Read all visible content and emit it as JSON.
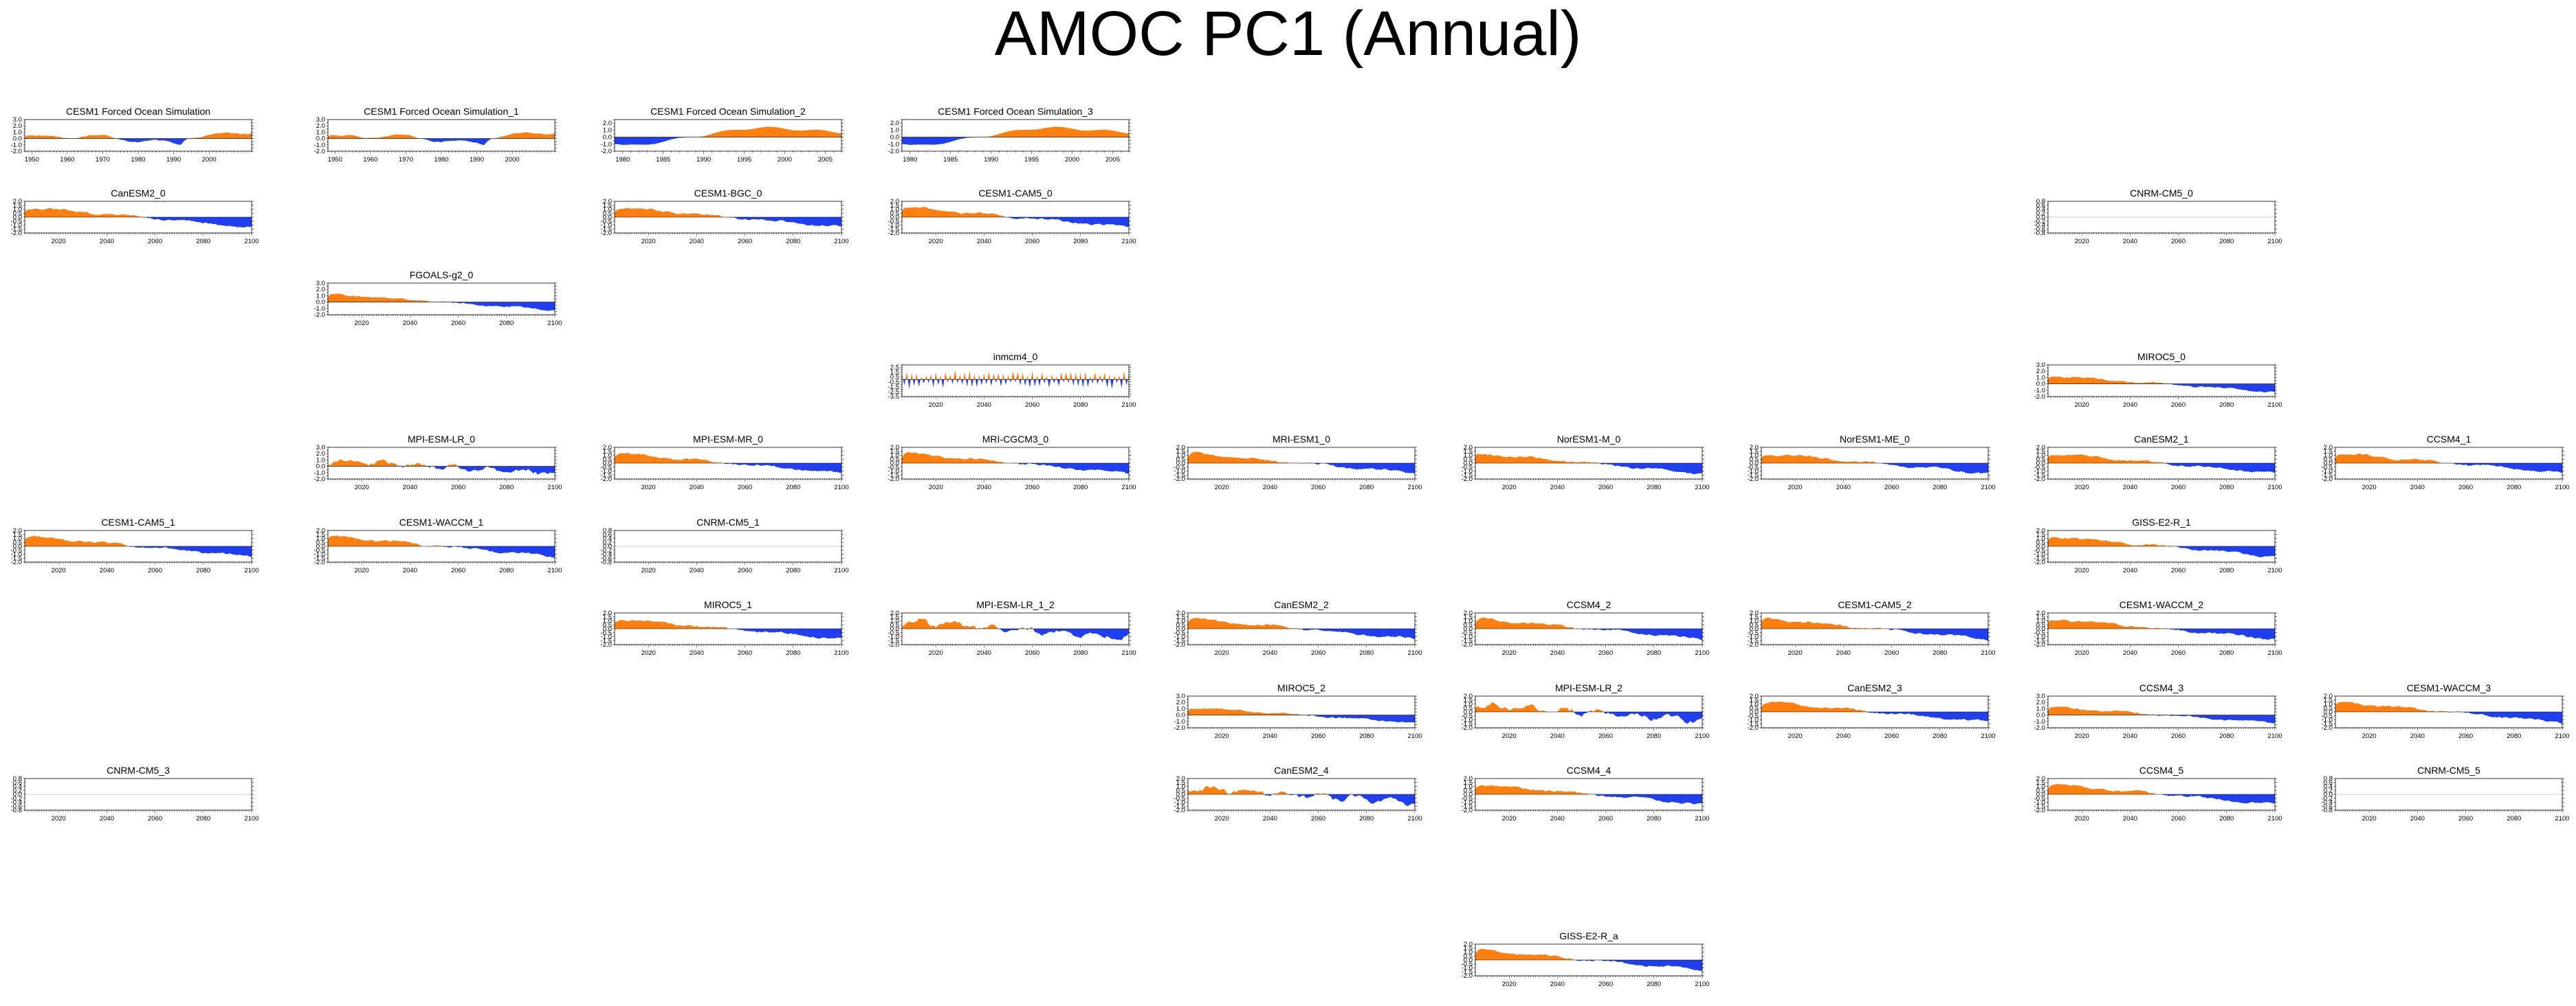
{
  "title": "AMOC PC1 (Annual)",
  "colors": {
    "positive": "#ff7f0e",
    "negative": "#1f3ff0"
  },
  "chart_data": [
    {
      "title": "CESM1 Forced Ocean Simulation",
      "row": 0,
      "col": 0,
      "type": "area",
      "profile": "ocean",
      "xlim": [
        1948,
        2012
      ],
      "xticks": [
        1950,
        1960,
        1970,
        1980,
        1990,
        2000
      ],
      "ylim": [
        -2,
        3
      ],
      "yticks": [
        -2,
        -1.5,
        -1,
        -0.5,
        0,
        0.5,
        1,
        1.5,
        2,
        2.5,
        3
      ]
    },
    {
      "title": "CESM1 Forced Ocean Simulation_1",
      "row": 0,
      "col": 1,
      "type": "area",
      "profile": "ocean",
      "xlim": [
        1948,
        2012
      ],
      "xticks": [
        1950,
        1960,
        1970,
        1980,
        1990,
        2000
      ],
      "ylim": [
        -2,
        3
      ],
      "yticks": [
        -2,
        -1.5,
        -1,
        -0.5,
        0,
        0.5,
        1,
        1.5,
        2,
        2.5,
        3
      ]
    },
    {
      "title": "CESM1 Forced Ocean Simulation_2",
      "row": 0,
      "col": 2,
      "type": "area",
      "profile": "ocean2",
      "xlim": [
        1979,
        2007
      ],
      "xticks": [
        1980,
        1985,
        1990,
        1995,
        2000,
        2005
      ],
      "ylim": [
        -2,
        2.5
      ],
      "yticks": [
        -2,
        -1.5,
        -1,
        -0.5,
        0,
        0.5,
        1,
        1.5,
        2,
        2.5
      ]
    },
    {
      "title": "CESM1 Forced Ocean Simulation_3",
      "row": 0,
      "col": 3,
      "type": "area",
      "profile": "ocean2",
      "xlim": [
        1979,
        2007
      ],
      "xticks": [
        1980,
        1985,
        1990,
        1995,
        2000,
        2005
      ],
      "ylim": [
        -2,
        2.5
      ],
      "yticks": [
        -2,
        -1.5,
        -1,
        -0.5,
        0,
        0.5,
        1,
        1.5,
        2,
        2.5
      ]
    },
    {
      "title": "CanESM2_0",
      "row": 1,
      "col": 0,
      "type": "area",
      "profile": "down",
      "xlim": [
        2006,
        2100
      ],
      "xticks": [
        2020,
        2040,
        2060,
        2080,
        2100
      ],
      "ylim": [
        -2,
        2
      ],
      "yticks": [
        -2,
        -1.5,
        -1,
        -0.5,
        0,
        0.5,
        1,
        1.5,
        2
      ]
    },
    {
      "title": "CESM1-BGC_0",
      "row": 1,
      "col": 2,
      "type": "area",
      "profile": "down",
      "xlim": [
        2006,
        2100
      ],
      "xticks": [
        2020,
        2040,
        2060,
        2080,
        2100
      ],
      "ylim": [
        -2,
        2
      ],
      "yticks": [
        -2,
        -1.5,
        -1,
        -0.5,
        0,
        0.5,
        1,
        1.5,
        2
      ]
    },
    {
      "title": "CESM1-CAM5_0",
      "row": 1,
      "col": 3,
      "type": "area",
      "profile": "down",
      "xlim": [
        2006,
        2100
      ],
      "xticks": [
        2020,
        2040,
        2060,
        2080,
        2100
      ],
      "ylim": [
        -2,
        2
      ],
      "yticks": [
        -2,
        -1.5,
        -1,
        -0.5,
        0,
        0.5,
        1,
        1.5,
        2
      ]
    },
    {
      "title": "CNRM-CM5_0",
      "row": 1,
      "col": 7,
      "type": "area",
      "profile": "flat",
      "xlim": [
        2006,
        2100
      ],
      "xticks": [
        2020,
        2040,
        2060,
        2080,
        2100
      ],
      "ylim": [
        -0.8,
        0.8
      ],
      "yticks": [
        -0.8,
        -0.6,
        -0.4,
        -0.2,
        0,
        0.2,
        0.4,
        0.6,
        0.8
      ]
    },
    {
      "title": "FGOALS-g2_0",
      "row": 2,
      "col": 1,
      "type": "area",
      "profile": "down",
      "xlim": [
        2006,
        2100
      ],
      "xticks": [
        2020,
        2040,
        2060,
        2080,
        2100
      ],
      "ylim": [
        -2,
        3
      ],
      "yticks": [
        -2,
        -1.5,
        -1,
        -0.5,
        0,
        0.5,
        1,
        1.5,
        2,
        2.5,
        3
      ]
    },
    {
      "title": "inmcm4_0",
      "row": 3,
      "col": 3,
      "type": "area",
      "profile": "osc",
      "xlim": [
        2006,
        2100
      ],
      "xticks": [
        2020,
        2040,
        2060,
        2080,
        2100
      ],
      "ylim": [
        -3.5,
        3
      ],
      "yticks": [
        -3.5,
        -3,
        -2.5,
        -2,
        -1.5,
        -1,
        -0.5,
        0,
        0.5,
        1,
        1.5,
        2,
        2.5,
        3
      ]
    },
    {
      "title": "MIROC5_0",
      "row": 3,
      "col": 7,
      "type": "area",
      "profile": "down",
      "xlim": [
        2006,
        2100
      ],
      "xticks": [
        2020,
        2040,
        2060,
        2080,
        2100
      ],
      "ylim": [
        -2,
        3
      ],
      "yticks": [
        -2,
        -1.5,
        -1,
        -0.5,
        0,
        0.5,
        1,
        1.5,
        2,
        2.5,
        3
      ]
    },
    {
      "title": "MPI-ESM-LR_0",
      "row": 4,
      "col": 1,
      "type": "area",
      "profile": "noisy",
      "xlim": [
        2006,
        2100
      ],
      "xticks": [
        2020,
        2040,
        2060,
        2080,
        2100
      ],
      "ylim": [
        -2,
        3
      ],
      "yticks": [
        -2,
        -1.5,
        -1,
        -0.5,
        0,
        0.5,
        1,
        1.5,
        2,
        2.5,
        3
      ]
    },
    {
      "title": "MPI-ESM-MR_0",
      "row": 4,
      "col": 2,
      "type": "area",
      "profile": "down",
      "xlim": [
        2006,
        2100
      ],
      "xticks": [
        2020,
        2040,
        2060,
        2080,
        2100
      ],
      "ylim": [
        -2,
        2
      ],
      "yticks": [
        -2,
        -1.5,
        -1,
        -0.5,
        0,
        0.5,
        1,
        1.5,
        2
      ]
    },
    {
      "title": "MRI-CGCM3_0",
      "row": 4,
      "col": 3,
      "type": "area",
      "profile": "down",
      "xlim": [
        2006,
        2100
      ],
      "xticks": [
        2020,
        2040,
        2060,
        2080,
        2100
      ],
      "ylim": [
        -2,
        2
      ],
      "yticks": [
        -2,
        -1.5,
        -1,
        -0.5,
        0,
        0.5,
        1,
        1.5,
        2
      ]
    },
    {
      "title": "MRI-ESM1_0",
      "row": 4,
      "col": 4,
      "type": "area",
      "profile": "down",
      "xlim": [
        2006,
        2100
      ],
      "xticks": [
        2020,
        2040,
        2060,
        2080,
        2100
      ],
      "ylim": [
        -2,
        2
      ],
      "yticks": [
        -2,
        -1.5,
        -1,
        -0.5,
        0,
        0.5,
        1,
        1.5,
        2
      ]
    },
    {
      "title": "NorESM1-M_0",
      "row": 4,
      "col": 5,
      "type": "area",
      "profile": "down",
      "xlim": [
        2006,
        2100
      ],
      "xticks": [
        2020,
        2040,
        2060,
        2080,
        2100
      ],
      "ylim": [
        -2,
        2
      ],
      "yticks": [
        -2,
        -1.5,
        -1,
        -0.5,
        0,
        0.5,
        1,
        1.5,
        2
      ]
    },
    {
      "title": "NorESM1-ME_0",
      "row": 4,
      "col": 6,
      "type": "area",
      "profile": "down",
      "xlim": [
        2006,
        2100
      ],
      "xticks": [
        2020,
        2040,
        2060,
        2080,
        2100
      ],
      "ylim": [
        -2,
        2
      ],
      "yticks": [
        -2,
        -1.5,
        -1,
        -0.5,
        0,
        0.5,
        1,
        1.5,
        2
      ]
    },
    {
      "title": "CanESM2_1",
      "row": 4,
      "col": 7,
      "type": "area",
      "profile": "down",
      "xlim": [
        2006,
        2100
      ],
      "xticks": [
        2020,
        2040,
        2060,
        2080,
        2100
      ],
      "ylim": [
        -2,
        2
      ],
      "yticks": [
        -2,
        -1.5,
        -1,
        -0.5,
        0,
        0.5,
        1,
        1.5,
        2
      ]
    },
    {
      "title": "CCSM4_1",
      "row": 4,
      "col": 8,
      "type": "area",
      "profile": "down",
      "xlim": [
        2006,
        2100
      ],
      "xticks": [
        2020,
        2040,
        2060,
        2080,
        2100
      ],
      "ylim": [
        -2,
        2
      ],
      "yticks": [
        -2,
        -1.5,
        -1,
        -0.5,
        0,
        0.5,
        1,
        1.5,
        2
      ]
    },
    {
      "title": "CESM1-CAM5_1",
      "row": 5,
      "col": 0,
      "type": "area",
      "profile": "down",
      "xlim": [
        2006,
        2100
      ],
      "xticks": [
        2020,
        2040,
        2060,
        2080,
        2100
      ],
      "ylim": [
        -2,
        2
      ],
      "yticks": [
        -2,
        -1.5,
        -1,
        -0.5,
        0,
        0.5,
        1,
        1.5,
        2
      ]
    },
    {
      "title": "CESM1-WACCM_1",
      "row": 5,
      "col": 1,
      "type": "area",
      "profile": "down",
      "xlim": [
        2006,
        2100
      ],
      "xticks": [
        2020,
        2040,
        2060,
        2080,
        2100
      ],
      "ylim": [
        -2,
        2
      ],
      "yticks": [
        -2,
        -1.5,
        -1,
        -0.5,
        0,
        0.5,
        1,
        1.5,
        2
      ]
    },
    {
      "title": "CNRM-CM5_1",
      "row": 5,
      "col": 2,
      "type": "area",
      "profile": "flat",
      "xlim": [
        2006,
        2100
      ],
      "xticks": [
        2020,
        2040,
        2060,
        2080,
        2100
      ],
      "ylim": [
        -0.8,
        0.8
      ],
      "yticks": [
        -0.8,
        -0.6,
        -0.4,
        -0.2,
        0,
        0.2,
        0.4,
        0.6,
        0.8
      ]
    },
    {
      "title": "GISS-E2-R_1",
      "row": 5,
      "col": 7,
      "type": "area",
      "profile": "down",
      "xlim": [
        2006,
        2100
      ],
      "xticks": [
        2020,
        2040,
        2060,
        2080,
        2100
      ],
      "ylim": [
        -2,
        2
      ],
      "yticks": [
        -2,
        -1.5,
        -1,
        -0.5,
        0,
        0.5,
        1,
        1.5,
        2
      ]
    },
    {
      "title": "MIROC5_1",
      "row": 6,
      "col": 2,
      "type": "area",
      "profile": "down",
      "xlim": [
        2006,
        2100
      ],
      "xticks": [
        2020,
        2040,
        2060,
        2080,
        2100
      ],
      "ylim": [
        -2,
        2
      ],
      "yticks": [
        -2,
        -1.5,
        -1,
        -0.5,
        0,
        0.5,
        1,
        1.5,
        2
      ]
    },
    {
      "title": "MPI-ESM-LR_1_2",
      "row": 6,
      "col": 3,
      "type": "area",
      "profile": "noisy",
      "xlim": [
        2006,
        2100
      ],
      "xticks": [
        2020,
        2040,
        2060,
        2080,
        2100
      ],
      "ylim": [
        -2,
        2
      ],
      "yticks": [
        -2,
        -1.5,
        -1,
        -0.5,
        0,
        0.5,
        1,
        1.5,
        2
      ]
    },
    {
      "title": "CanESM2_2",
      "row": 6,
      "col": 4,
      "type": "area",
      "profile": "down",
      "xlim": [
        2006,
        2100
      ],
      "xticks": [
        2020,
        2040,
        2060,
        2080,
        2100
      ],
      "ylim": [
        -2,
        2
      ],
      "yticks": [
        -2,
        -1.5,
        -1,
        -0.5,
        0,
        0.5,
        1,
        1.5,
        2
      ]
    },
    {
      "title": "CCSM4_2",
      "row": 6,
      "col": 5,
      "type": "area",
      "profile": "down",
      "xlim": [
        2006,
        2100
      ],
      "xticks": [
        2020,
        2040,
        2060,
        2080,
        2100
      ],
      "ylim": [
        -2,
        2
      ],
      "yticks": [
        -2,
        -1.5,
        -1,
        -0.5,
        0,
        0.5,
        1,
        1.5,
        2
      ]
    },
    {
      "title": "CESM1-CAM5_2",
      "row": 6,
      "col": 6,
      "type": "area",
      "profile": "down",
      "xlim": [
        2006,
        2100
      ],
      "xticks": [
        2020,
        2040,
        2060,
        2080,
        2100
      ],
      "ylim": [
        -2,
        2
      ],
      "yticks": [
        -2,
        -1.5,
        -1,
        -0.5,
        0,
        0.5,
        1,
        1.5,
        2
      ]
    },
    {
      "title": "CESM1-WACCM_2",
      "row": 6,
      "col": 7,
      "type": "area",
      "profile": "down",
      "xlim": [
        2006,
        2100
      ],
      "xticks": [
        2020,
        2040,
        2060,
        2080,
        2100
      ],
      "ylim": [
        -2,
        2
      ],
      "yticks": [
        -2,
        -1.5,
        -1,
        -0.5,
        0,
        0.5,
        1,
        1.5,
        2
      ]
    },
    {
      "title": "MIROC5_2",
      "row": 7,
      "col": 4,
      "type": "area",
      "profile": "down",
      "xlim": [
        2006,
        2100
      ],
      "xticks": [
        2020,
        2040,
        2060,
        2080,
        2100
      ],
      "ylim": [
        -2,
        3
      ],
      "yticks": [
        -2,
        -1.5,
        -1,
        -0.5,
        0,
        0.5,
        1,
        1.5,
        2,
        2.5,
        3
      ]
    },
    {
      "title": "MPI-ESM-LR_2",
      "row": 7,
      "col": 5,
      "type": "area",
      "profile": "noisy",
      "xlim": [
        2006,
        2100
      ],
      "xticks": [
        2020,
        2040,
        2060,
        2080,
        2100
      ],
      "ylim": [
        -2,
        2
      ],
      "yticks": [
        -2,
        -1.5,
        -1,
        -0.5,
        0,
        0.5,
        1,
        1.5,
        2
      ]
    },
    {
      "title": "CanESM2_3",
      "row": 7,
      "col": 6,
      "type": "area",
      "profile": "down",
      "xlim": [
        2006,
        2100
      ],
      "xticks": [
        2020,
        2040,
        2060,
        2080,
        2100
      ],
      "ylim": [
        -2,
        2
      ],
      "yticks": [
        -2,
        -1.5,
        -1,
        -0.5,
        0,
        0.5,
        1,
        1.5,
        2
      ]
    },
    {
      "title": "CCSM4_3",
      "row": 7,
      "col": 7,
      "type": "area",
      "profile": "down",
      "xlim": [
        2006,
        2100
      ],
      "xticks": [
        2020,
        2040,
        2060,
        2080,
        2100
      ],
      "ylim": [
        -2,
        3
      ],
      "yticks": [
        -2,
        -1.5,
        -1,
        -0.5,
        0,
        0.5,
        1,
        1.5,
        2,
        2.5,
        3
      ]
    },
    {
      "title": "CESM1-WACCM_3",
      "row": 7,
      "col": 8,
      "type": "area",
      "profile": "down",
      "xlim": [
        2006,
        2100
      ],
      "xticks": [
        2020,
        2040,
        2060,
        2080,
        2100
      ],
      "ylim": [
        -2,
        2
      ],
      "yticks": [
        -2,
        -1.5,
        -1,
        -0.5,
        0,
        0.5,
        1,
        1.5,
        2
      ]
    },
    {
      "title": "CNRM-CM5_3",
      "row": 8,
      "col": 0,
      "type": "area",
      "profile": "flat",
      "xlim": [
        2006,
        2100
      ],
      "xticks": [
        2020,
        2040,
        2060,
        2080,
        2100
      ],
      "ylim": [
        -0.8,
        0.8
      ],
      "yticks": [
        -0.8,
        -0.6,
        -0.4,
        -0.2,
        0,
        0.2,
        0.4,
        0.6,
        0.8
      ]
    },
    {
      "title": "CanESM2_4",
      "row": 8,
      "col": 4,
      "type": "area",
      "profile": "noisy",
      "xlim": [
        2006,
        2100
      ],
      "xticks": [
        2020,
        2040,
        2060,
        2080,
        2100
      ],
      "ylim": [
        -2,
        2
      ],
      "yticks": [
        -2,
        -1.5,
        -1,
        -0.5,
        0,
        0.5,
        1,
        1.5,
        2
      ]
    },
    {
      "title": "CCSM4_4",
      "row": 8,
      "col": 5,
      "type": "area",
      "profile": "down",
      "xlim": [
        2006,
        2100
      ],
      "xticks": [
        2020,
        2040,
        2060,
        2080,
        2100
      ],
      "ylim": [
        -2,
        2
      ],
      "yticks": [
        -2,
        -1.5,
        -1,
        -0.5,
        0,
        0.5,
        1,
        1.5,
        2
      ]
    },
    {
      "title": "CCSM4_5",
      "row": 8,
      "col": 7,
      "type": "area",
      "profile": "down",
      "xlim": [
        2006,
        2100
      ],
      "xticks": [
        2020,
        2040,
        2060,
        2080,
        2100
      ],
      "ylim": [
        -2,
        2
      ],
      "yticks": [
        -2,
        -1.5,
        -1,
        -0.5,
        0,
        0.5,
        1,
        1.5,
        2
      ]
    },
    {
      "title": "CNRM-CM5_5",
      "row": 8,
      "col": 8,
      "type": "area",
      "profile": "flat",
      "xlim": [
        2006,
        2100
      ],
      "xticks": [
        2020,
        2040,
        2060,
        2080,
        2100
      ],
      "ylim": [
        -0.8,
        0.8
      ],
      "yticks": [
        -0.8,
        -0.6,
        -0.4,
        -0.2,
        0,
        0.2,
        0.4,
        0.6,
        0.8
      ]
    },
    {
      "title": "GISS-E2-R_a",
      "row": 10,
      "col": 5,
      "type": "area",
      "profile": "down",
      "xlim": [
        2006,
        2100
      ],
      "xticks": [
        2020,
        2040,
        2060,
        2080,
        2100
      ],
      "ylim": [
        -2,
        2
      ],
      "yticks": [
        -2,
        -1.5,
        -1,
        -0.5,
        0,
        0.5,
        1,
        1.5,
        2
      ]
    }
  ]
}
